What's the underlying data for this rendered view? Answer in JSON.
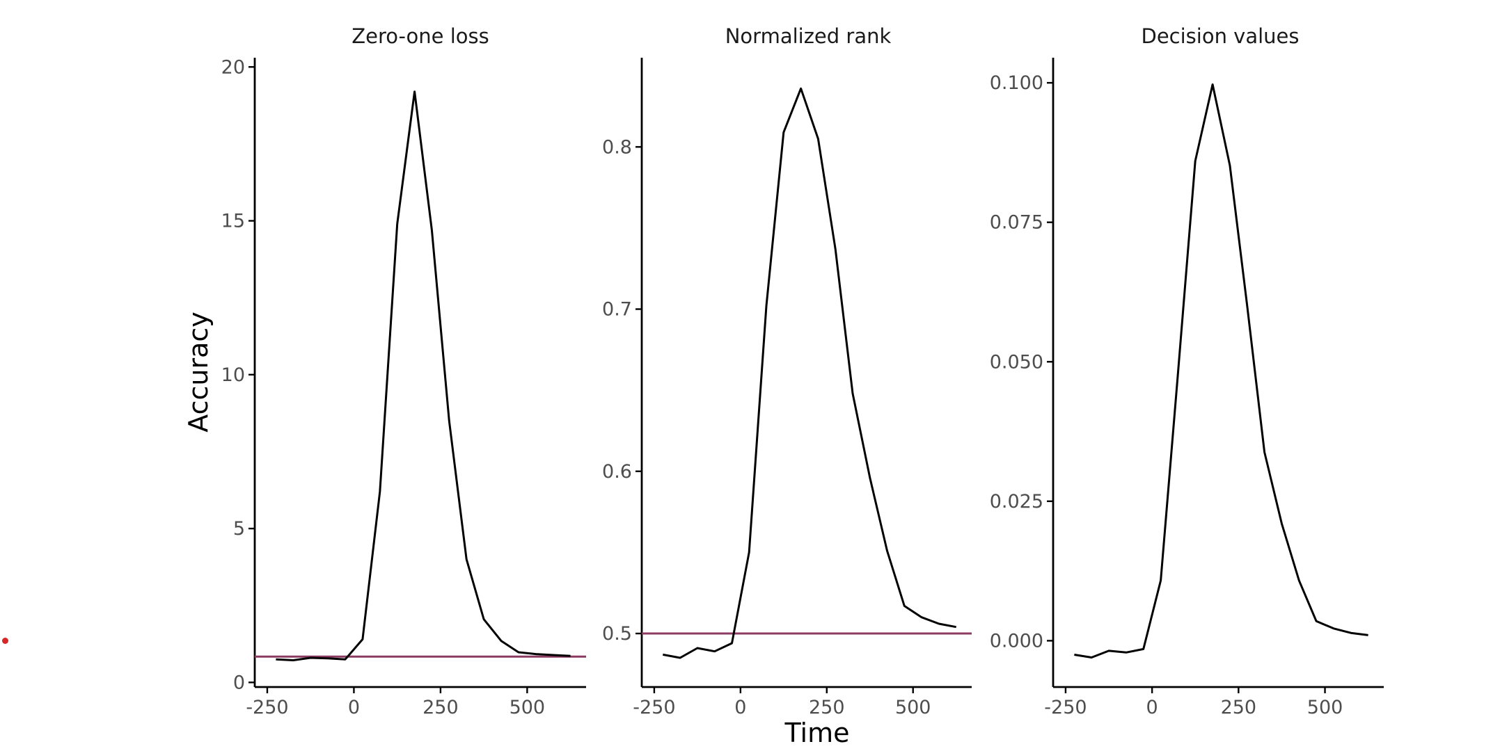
{
  "figure": {
    "ylabel": "Accuracy",
    "xlabel": "Time",
    "chance_color": "#8b3a62",
    "line_color": "#000000",
    "marker_color": "#d62728"
  },
  "chart_data": [
    {
      "type": "line",
      "title": "Zero-one loss",
      "xlim": [
        -270,
        670
      ],
      "ylim": [
        -0.15,
        20.3
      ],
      "xticks": [
        -250,
        0,
        250,
        500
      ],
      "yticks": [
        0,
        5,
        10,
        15,
        20
      ],
      "x": [
        -225,
        -175,
        -125,
        -75,
        -25,
        25,
        75,
        125,
        175,
        225,
        275,
        325,
        375,
        425,
        475,
        525,
        575,
        625
      ],
      "series": [
        {
          "values": [
            0.75,
            0.72,
            0.8,
            0.78,
            0.75,
            1.4,
            6.2,
            14.9,
            19.2,
            14.7,
            8.5,
            4.0,
            2.05,
            1.35,
            0.98,
            0.92,
            0.89,
            0.86
          ]
        }
      ],
      "chance_level": 0.84
    },
    {
      "type": "line",
      "title": "Normalized rank",
      "xlim": [
        -270,
        670
      ],
      "ylim": [
        0.467,
        0.855
      ],
      "xticks": [
        -250,
        0,
        250,
        500
      ],
      "yticks": [
        0.5,
        0.6,
        0.7,
        0.8
      ],
      "x": [
        -225,
        -175,
        -125,
        -75,
        -25,
        25,
        75,
        125,
        175,
        225,
        275,
        325,
        375,
        425,
        475,
        525,
        575,
        625
      ],
      "series": [
        {
          "values": [
            0.487,
            0.485,
            0.491,
            0.489,
            0.494,
            0.55,
            0.702,
            0.809,
            0.836,
            0.805,
            0.737,
            0.648,
            0.596,
            0.551,
            0.517,
            0.51,
            0.506,
            0.504
          ]
        }
      ],
      "chance_level": 0.5
    },
    {
      "type": "line",
      "title": "Decision values",
      "xlim": [
        -270,
        670
      ],
      "ylim": [
        -0.0083,
        0.1045
      ],
      "xticks": [
        -250,
        0,
        250,
        500
      ],
      "yticks": [
        0.0,
        0.025,
        0.05,
        0.075,
        0.1
      ],
      "ytick_labels": [
        "0.000",
        "0.025",
        "0.050",
        "0.075",
        "0.100"
      ],
      "x": [
        -225,
        -175,
        -125,
        -75,
        -25,
        25,
        75,
        125,
        175,
        225,
        275,
        325,
        375,
        425,
        475,
        525,
        575,
        625
      ],
      "series": [
        {
          "values": [
            -0.0025,
            -0.003,
            -0.0018,
            -0.0021,
            -0.0015,
            0.0108,
            0.048,
            0.086,
            0.0997,
            0.0852,
            0.06,
            0.0338,
            0.021,
            0.0108,
            0.0035,
            0.0022,
            0.0014,
            0.001
          ]
        }
      ]
    }
  ]
}
